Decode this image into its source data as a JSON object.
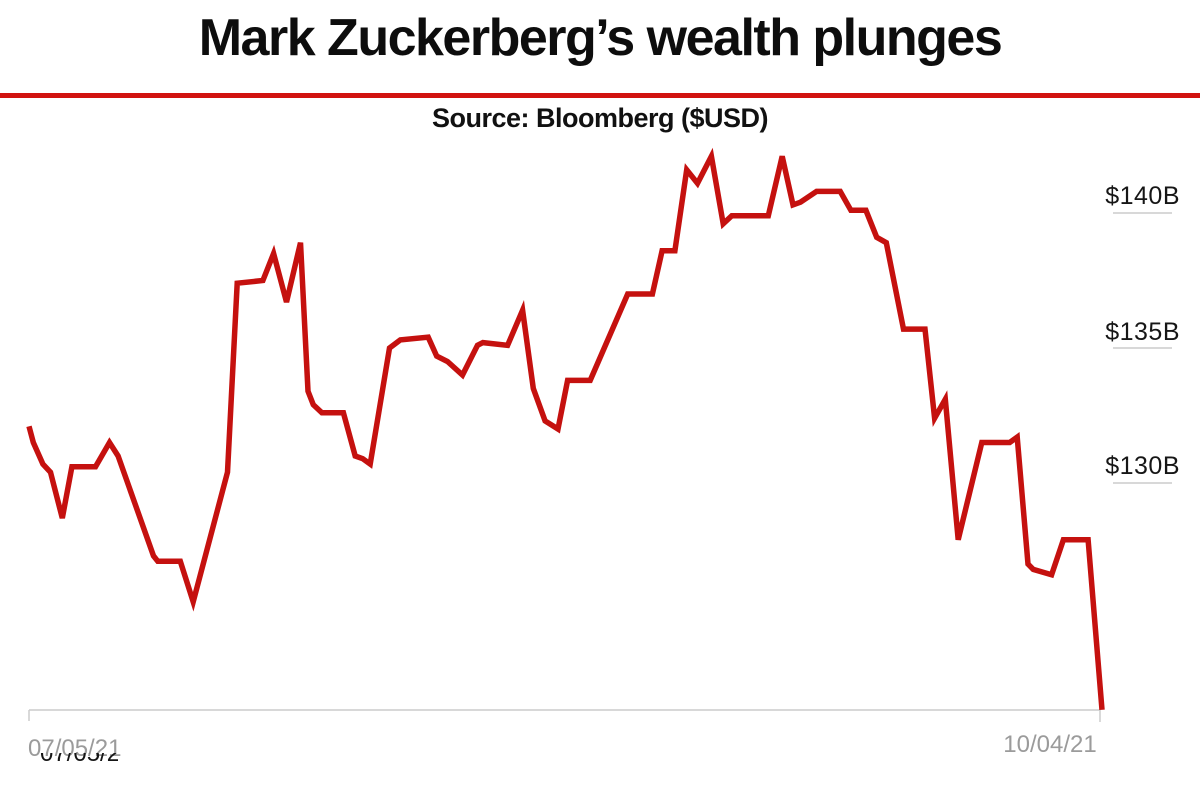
{
  "header": {
    "title": "Mark Zuckerberg’s wealth plunges",
    "subtitle": "Source: Bloomberg ($USD)"
  },
  "chart_data": {
    "type": "line",
    "title": "Mark Zuckerberg’s wealth plunges",
    "source": "Source: Bloomberg ($USD)",
    "unit": "USD billions",
    "legend": null,
    "grid": "off",
    "y_axis": {
      "side": "right",
      "ticks": [
        {
          "label": "$140B",
          "value": 140
        },
        {
          "label": "$135B",
          "value": 135
        },
        {
          "label": "$130B",
          "value": 130
        }
      ]
    },
    "x_axis": {
      "ticks": [
        {
          "label": "07/05/21",
          "position": 0
        },
        {
          "label": "10/04/21",
          "position": 1
        }
      ],
      "range": [
        "07/05/21",
        "10/04/21"
      ]
    },
    "colors": {
      "line": "#c5110f",
      "rule": "#d11310",
      "axis": "#cccccc",
      "date_labels": "#9b9b9b",
      "value_labels": "#161616"
    },
    "points": [
      [
        0.0,
        132.1
      ],
      [
        0.004,
        131.5
      ],
      [
        0.013,
        130.7
      ],
      [
        0.02,
        130.4
      ],
      [
        0.031,
        128.7
      ],
      [
        0.04,
        130.6
      ],
      [
        0.062,
        130.6
      ],
      [
        0.075,
        131.5
      ],
      [
        0.083,
        131.0
      ],
      [
        0.116,
        127.3
      ],
      [
        0.12,
        127.1
      ],
      [
        0.141,
        127.1
      ],
      [
        0.153,
        125.6
      ],
      [
        0.185,
        130.4
      ],
      [
        0.194,
        137.4
      ],
      [
        0.218,
        137.5
      ],
      [
        0.228,
        138.5
      ],
      [
        0.24,
        136.7
      ],
      [
        0.253,
        138.9
      ],
      [
        0.26,
        133.4
      ],
      [
        0.265,
        132.9
      ],
      [
        0.273,
        132.6
      ],
      [
        0.293,
        132.6
      ],
      [
        0.304,
        131.0
      ],
      [
        0.311,
        130.9
      ],
      [
        0.318,
        130.7
      ],
      [
        0.336,
        135.0
      ],
      [
        0.346,
        135.3
      ],
      [
        0.372,
        135.4
      ],
      [
        0.38,
        134.7
      ],
      [
        0.39,
        134.5
      ],
      [
        0.404,
        134.0
      ],
      [
        0.418,
        135.1
      ],
      [
        0.423,
        135.2
      ],
      [
        0.446,
        135.1
      ],
      [
        0.46,
        136.4
      ],
      [
        0.47,
        133.5
      ],
      [
        0.481,
        132.3
      ],
      [
        0.493,
        132.0
      ],
      [
        0.502,
        133.8
      ],
      [
        0.523,
        133.8
      ],
      [
        0.558,
        137.0
      ],
      [
        0.581,
        137.0
      ],
      [
        0.59,
        138.6
      ],
      [
        0.602,
        138.6
      ],
      [
        0.613,
        141.6
      ],
      [
        0.623,
        141.1
      ],
      [
        0.636,
        142.1
      ],
      [
        0.647,
        139.6
      ],
      [
        0.655,
        139.9
      ],
      [
        0.689,
        139.9
      ],
      [
        0.702,
        142.1
      ],
      [
        0.712,
        140.3
      ],
      [
        0.719,
        140.4
      ],
      [
        0.734,
        140.8
      ],
      [
        0.756,
        140.8
      ],
      [
        0.766,
        140.1
      ],
      [
        0.78,
        140.1
      ],
      [
        0.79,
        139.1
      ],
      [
        0.799,
        138.9
      ],
      [
        0.815,
        135.7
      ],
      [
        0.835,
        135.7
      ],
      [
        0.844,
        132.4
      ],
      [
        0.854,
        133.1
      ],
      [
        0.866,
        127.9
      ],
      [
        0.888,
        131.5
      ],
      [
        0.914,
        131.5
      ],
      [
        0.921,
        131.7
      ],
      [
        0.931,
        127.0
      ],
      [
        0.936,
        126.8
      ],
      [
        0.953,
        126.6
      ],
      [
        0.964,
        127.9
      ],
      [
        0.987,
        127.9
      ],
      [
        1.0,
        121.6
      ]
    ]
  }
}
